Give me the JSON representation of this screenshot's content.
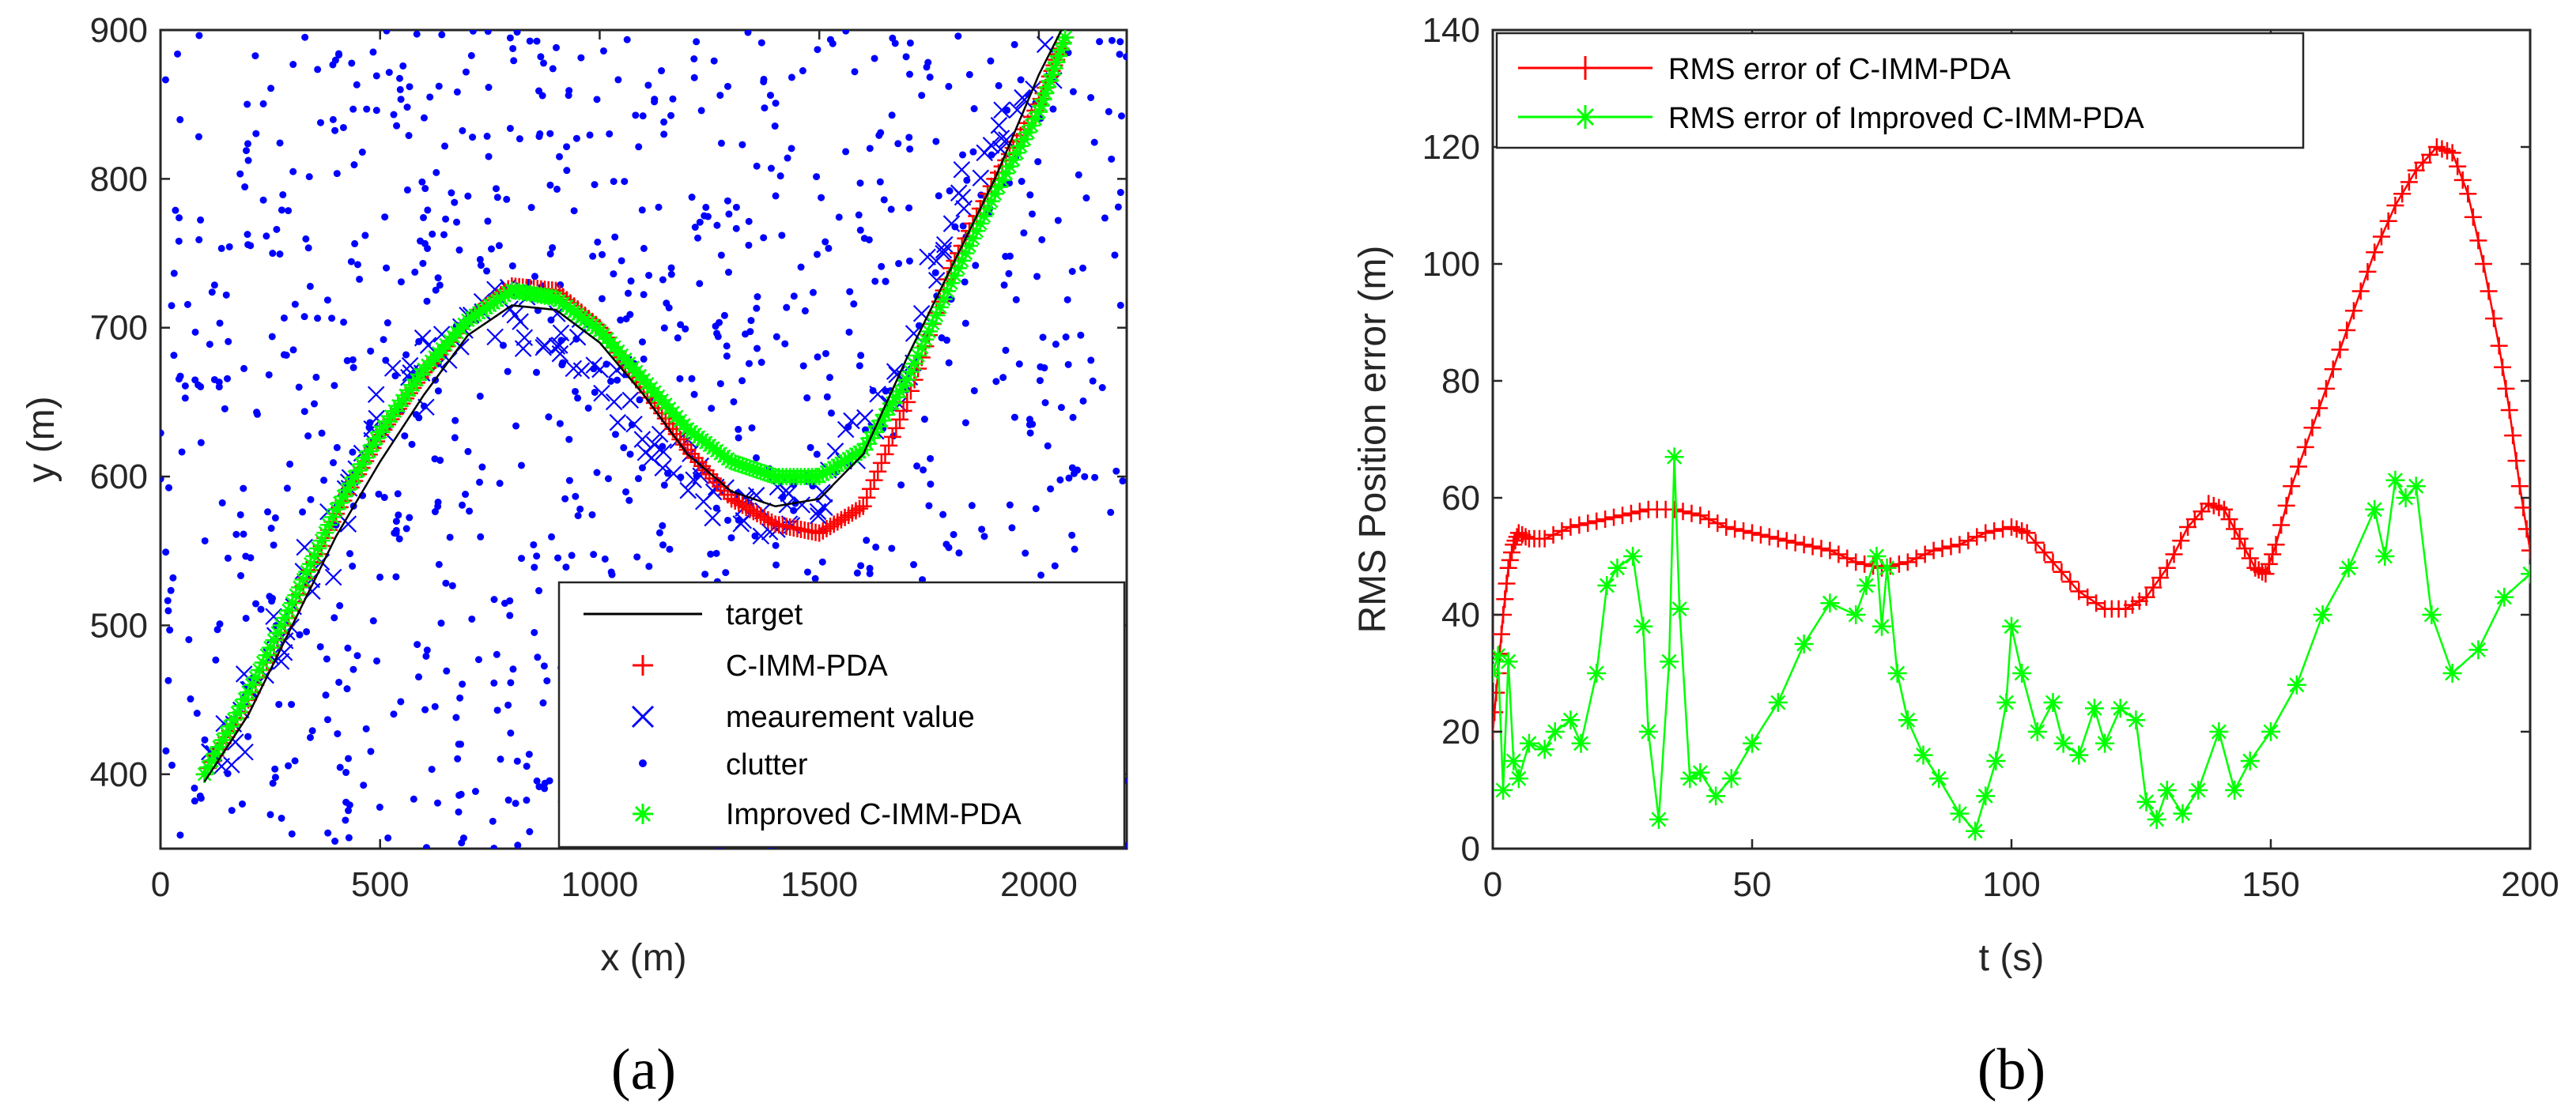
{
  "figure": {
    "caption_a": "(a)",
    "caption_b": "(b)"
  },
  "chart_data": [
    {
      "type": "scatter",
      "panel": "a",
      "title": "",
      "xlabel": "x (m)",
      "ylabel": "y (m)",
      "xlim": [
        0,
        2200
      ],
      "ylim": [
        350,
        900
      ],
      "xticks": [
        0,
        500,
        1000,
        1500,
        2000
      ],
      "yticks": [
        400,
        500,
        600,
        700,
        800,
        900
      ],
      "xtick_labels": [
        "0",
        "500",
        "1000",
        "1500",
        "2000"
      ],
      "ytick_labels": [
        "400",
        "500",
        "600",
        "700",
        "800",
        "900"
      ],
      "grid": false,
      "legend_position": "bottom-right",
      "legend": [
        "target",
        "C-IMM-PDA",
        "meaurement value",
        "clutter",
        "Improved C-IMM-PDA"
      ],
      "target_x": [
        100,
        200,
        300,
        400,
        500,
        600,
        700,
        800,
        900,
        1000,
        1100,
        1200,
        1300,
        1400,
        1500,
        1600,
        1700,
        1800,
        1900,
        2000,
        2060
      ],
      "target_y": [
        395,
        440,
        500,
        560,
        610,
        655,
        695,
        715,
        712,
        690,
        655,
        615,
        590,
        580,
        585,
        615,
        680,
        740,
        800,
        870,
        905
      ],
      "c_imm_pda_x": [
        100,
        200,
        300,
        400,
        500,
        600,
        700,
        800,
        900,
        1000,
        1100,
        1200,
        1300,
        1400,
        1500,
        1600,
        1700,
        1800,
        1900,
        2000,
        2060
      ],
      "c_imm_pda_y": [
        400,
        450,
        510,
        575,
        628,
        670,
        705,
        728,
        725,
        700,
        660,
        618,
        585,
        568,
        562,
        580,
        650,
        740,
        800,
        850,
        895
      ],
      "improved_x": [
        100,
        200,
        300,
        400,
        500,
        600,
        700,
        800,
        900,
        1000,
        1100,
        1200,
        1300,
        1400,
        1500,
        1600,
        1700,
        1800,
        1900,
        2000,
        2060
      ],
      "improved_y": [
        400,
        455,
        515,
        578,
        630,
        672,
        705,
        725,
        720,
        698,
        665,
        632,
        610,
        600,
        600,
        618,
        665,
        730,
        790,
        845,
        895
      ],
      "measurement_x": [
        110,
        180,
        260,
        330,
        420,
        520,
        610,
        700,
        790,
        860,
        950,
        1040,
        1130,
        1220,
        1300,
        1390,
        1470,
        1560,
        1650,
        1740,
        1830,
        1920,
        2010
      ],
      "measurement_y": [
        405,
        430,
        480,
        525,
        590,
        640,
        675,
        700,
        712,
        705,
        690,
        660,
        625,
        600,
        580,
        572,
        580,
        615,
        650,
        720,
        790,
        830,
        880
      ],
      "clutter_count": 1100
    },
    {
      "type": "line",
      "panel": "b",
      "title": "",
      "xlabel": "t (s)",
      "ylabel": "RMS Position error (m)",
      "xlim": [
        0,
        200
      ],
      "ylim": [
        0,
        140
      ],
      "xticks": [
        0,
        50,
        100,
        150,
        200
      ],
      "yticks": [
        0,
        20,
        40,
        60,
        80,
        100,
        120,
        140
      ],
      "xtick_labels": [
        "0",
        "50",
        "100",
        "150",
        "200"
      ],
      "ytick_labels": [
        "0",
        "20",
        "40",
        "60",
        "80",
        "100",
        "120",
        "140"
      ],
      "grid": false,
      "legend_position": "top-left",
      "series": [
        {
          "name": "RMS error of C-IMM-PDA",
          "color": "#ff0000",
          "marker": "plus",
          "x": [
            0,
            1,
            2,
            3,
            4,
            5,
            7,
            10,
            15,
            20,
            25,
            30,
            35,
            40,
            45,
            50,
            55,
            60,
            65,
            70,
            75,
            80,
            85,
            90,
            95,
            100,
            103,
            108,
            113,
            118,
            122,
            126,
            130,
            134,
            138,
            141,
            144,
            147,
            149,
            151,
            154,
            158,
            162,
            166,
            170,
            174,
            178,
            182,
            185,
            188,
            191,
            194,
            196,
            198,
            200
          ],
          "y": [
            20,
            30,
            40,
            48,
            52,
            54,
            53,
            53,
            55,
            56,
            57,
            58,
            58,
            57,
            55,
            54,
            53,
            52,
            51,
            49,
            48,
            49,
            51,
            52,
            54,
            55,
            54,
            49,
            44,
            41,
            41,
            43,
            48,
            55,
            59,
            58,
            53,
            48,
            47,
            52,
            62,
            72,
            82,
            92,
            102,
            110,
            116,
            120,
            119,
            112,
            100,
            86,
            75,
            62,
            51
          ]
        },
        {
          "name": "RMS error of Improved C-IMM-PDA",
          "color": "#00ff00",
          "marker": "asterisk",
          "x": [
            0,
            1,
            2,
            3,
            4,
            5,
            7,
            10,
            12,
            15,
            17,
            20,
            22,
            24,
            27,
            29,
            30,
            32,
            34,
            35,
            36,
            38,
            40,
            43,
            46,
            50,
            55,
            60,
            65,
            70,
            72,
            74,
            75,
            76,
            78,
            80,
            83,
            86,
            90,
            93,
            95,
            97,
            99,
            100,
            102,
            105,
            108,
            110,
            113,
            116,
            118,
            121,
            124,
            126,
            128,
            130,
            133,
            136,
            140,
            143,
            146,
            150,
            155,
            160,
            165,
            170,
            172,
            174,
            176,
            178,
            181,
            185,
            190,
            195,
            200
          ],
          "y": [
            30,
            33,
            10,
            32,
            15,
            12,
            18,
            17,
            20,
            22,
            18,
            30,
            45,
            48,
            50,
            38,
            20,
            5,
            32,
            67,
            41,
            12,
            13,
            9,
            12,
            18,
            25,
            35,
            42,
            40,
            45,
            50,
            38,
            48,
            30,
            22,
            16,
            12,
            6,
            3,
            9,
            15,
            25,
            38,
            30,
            20,
            25,
            18,
            16,
            24,
            18,
            24,
            22,
            8,
            5,
            10,
            6,
            10,
            20,
            10,
            15,
            20,
            28,
            40,
            48,
            58,
            50,
            63,
            60,
            62,
            40,
            30,
            34,
            43,
            47
          ]
        }
      ]
    }
  ]
}
